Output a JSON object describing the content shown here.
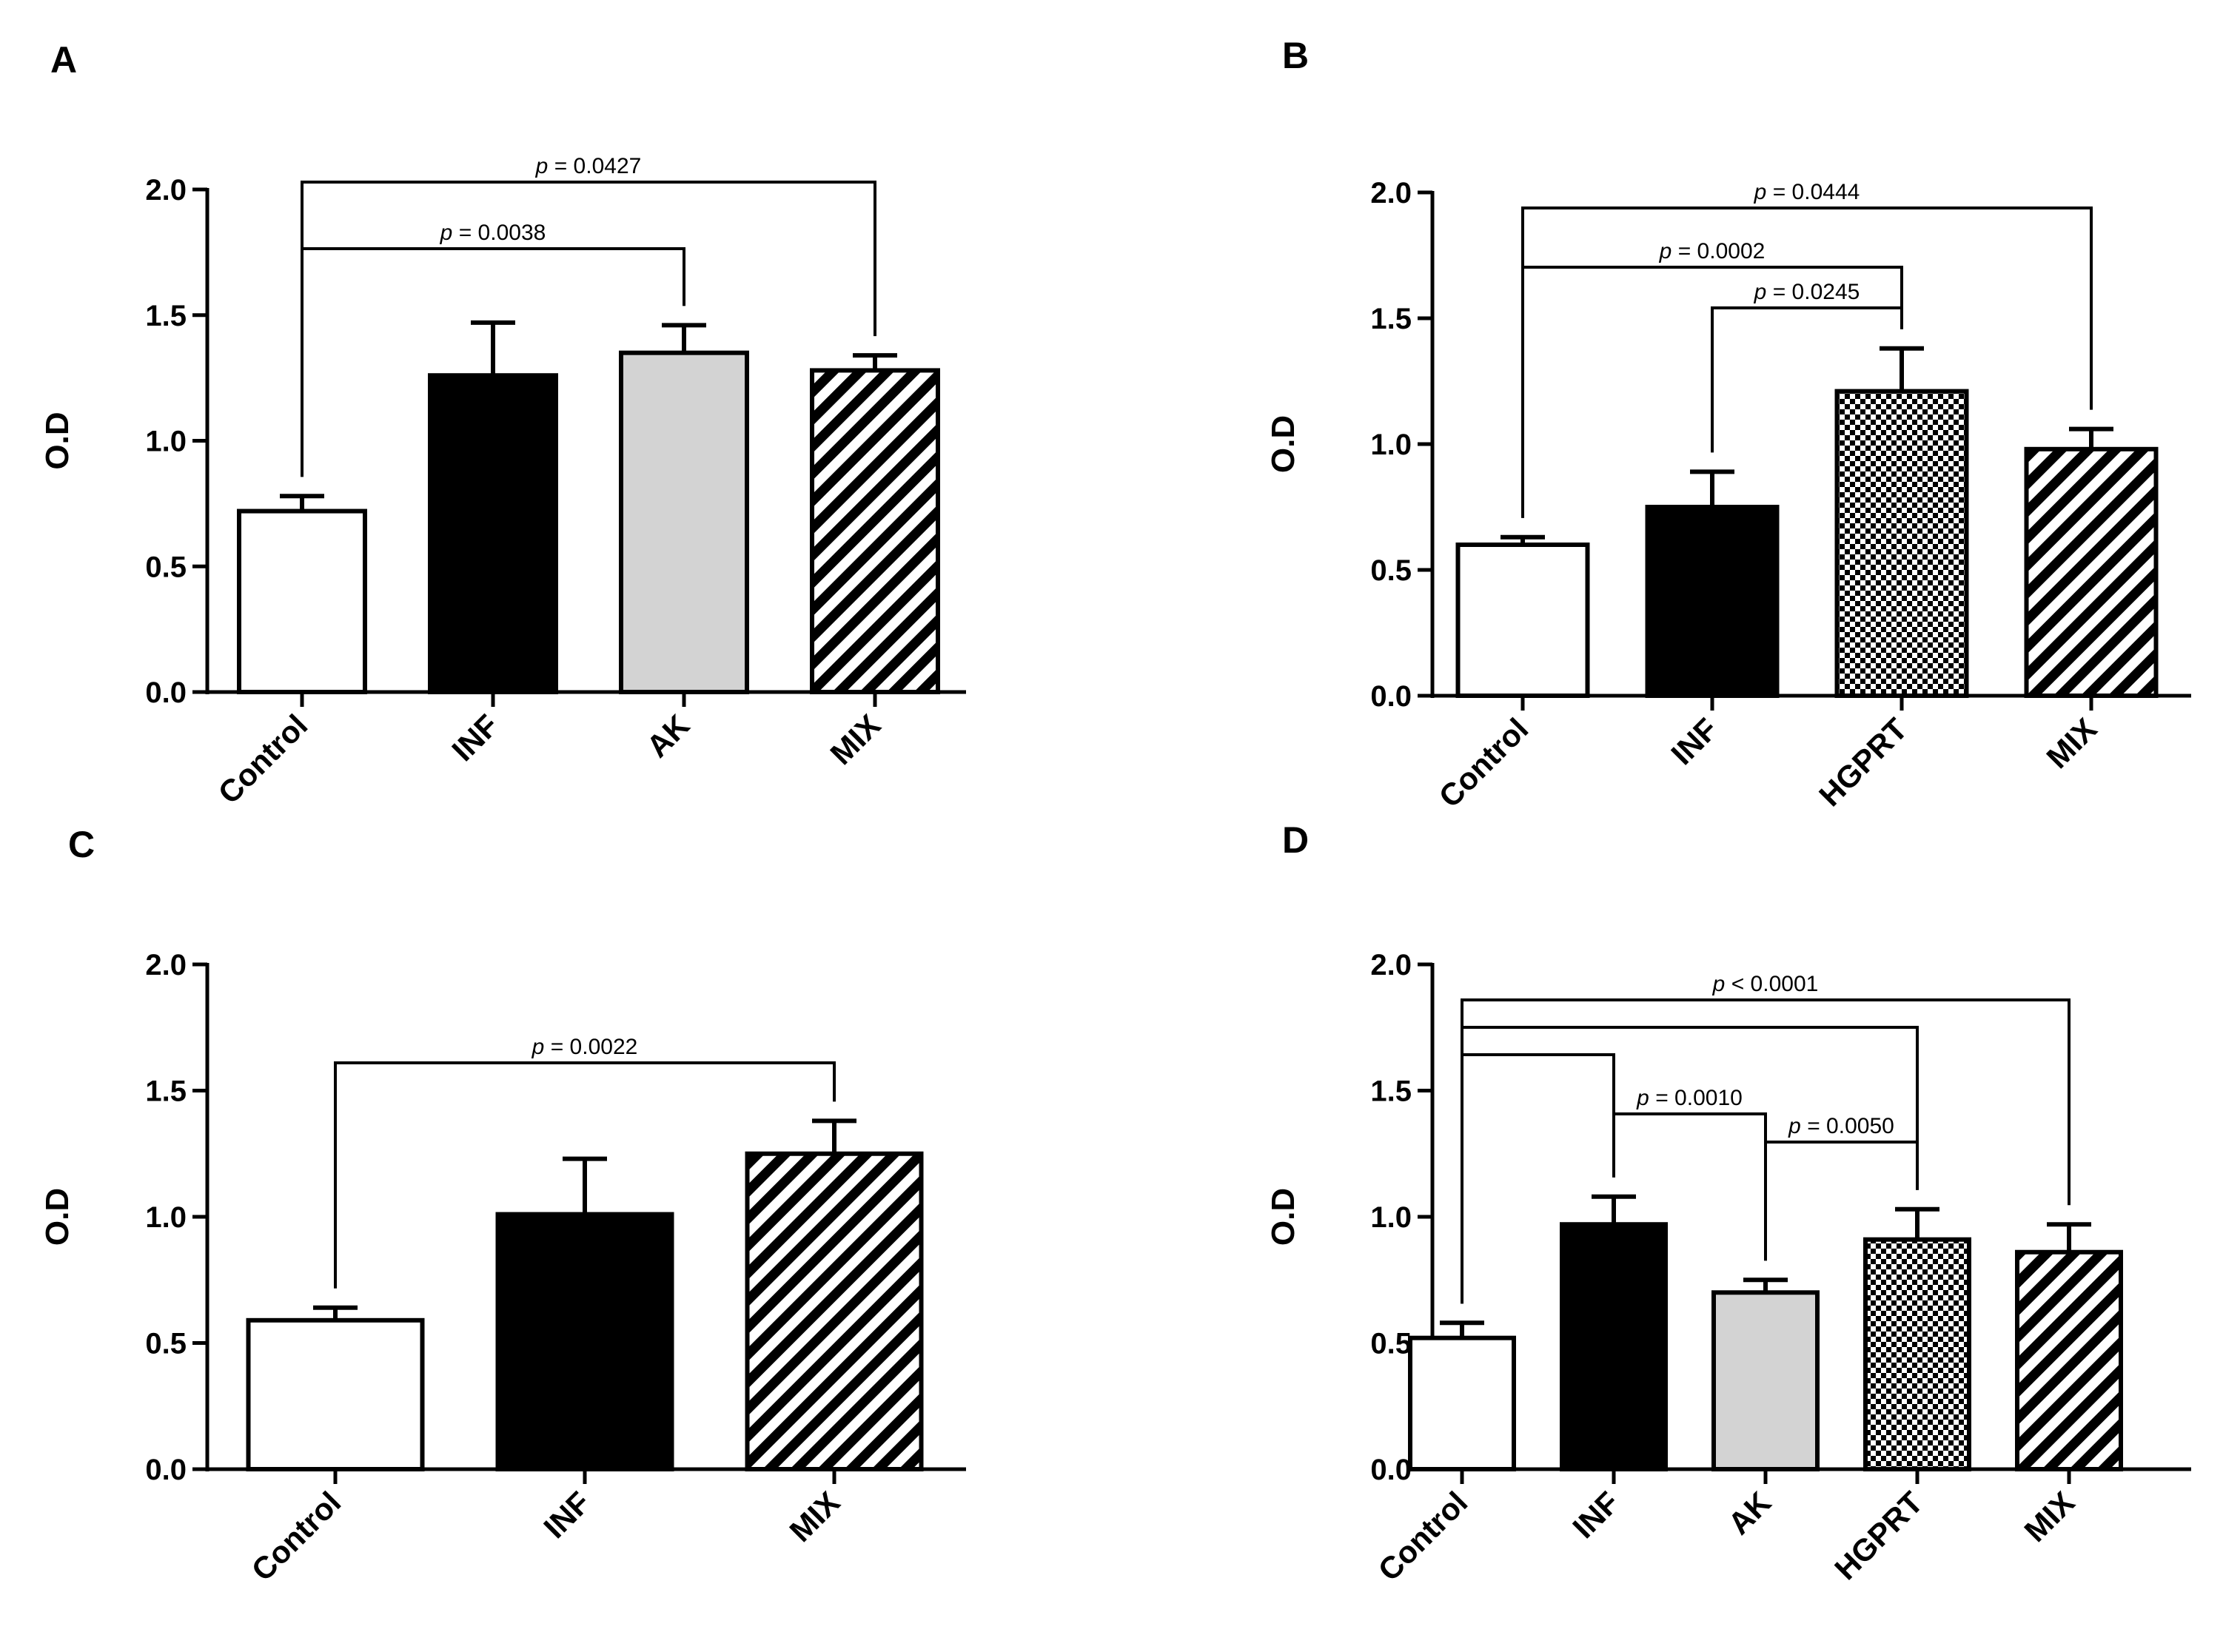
{
  "chart_data": [
    {
      "panel": "A",
      "type": "bar",
      "ylabel": "O.D",
      "ylim": [
        0,
        2.0
      ],
      "yticks": [
        "0.0",
        "0.5",
        "1.0",
        "1.5",
        "2.0"
      ],
      "categories": [
        "Control",
        "INF",
        "AK",
        "MIX"
      ],
      "values": [
        0.72,
        1.26,
        1.35,
        1.28
      ],
      "errors": [
        0.06,
        0.21,
        0.11,
        0.06
      ],
      "fills": [
        "white",
        "black",
        "gray",
        "stripes"
      ],
      "comparisons": [
        {
          "from": 0,
          "to": 3,
          "p_symbol": "p",
          "p_text": " = 0.0427"
        },
        {
          "from": 0,
          "to": 2,
          "p_symbol": "p",
          "p_text": " = 0.0038"
        }
      ]
    },
    {
      "panel": "B",
      "type": "bar",
      "ylabel": "O.D",
      "ylim": [
        0,
        2.0
      ],
      "yticks": [
        "0.0",
        "0.5",
        "1.0",
        "1.5",
        "2.0"
      ],
      "categories": [
        "Control",
        "INF",
        "HGPRT",
        "MIX"
      ],
      "values": [
        0.6,
        0.75,
        1.21,
        0.98
      ],
      "errors": [
        0.03,
        0.14,
        0.17,
        0.08
      ],
      "fills": [
        "white",
        "black",
        "checker",
        "stripes"
      ],
      "comparisons": [
        {
          "from": 0,
          "to": 3,
          "p_symbol": "p",
          "p_text": " = 0.0444"
        },
        {
          "from": 0,
          "to": 2,
          "p_symbol": "p",
          "p_text": " = 0.0002"
        },
        {
          "from": 1,
          "to": 2,
          "p_symbol": "p",
          "p_text": " = 0.0245"
        }
      ]
    },
    {
      "panel": "C",
      "type": "bar",
      "ylabel": "O.D",
      "ylim": [
        0,
        2.0
      ],
      "yticks": [
        "0.0",
        "0.5",
        "1.0",
        "1.5",
        "2.0"
      ],
      "categories": [
        "Control",
        "INF",
        "MIX"
      ],
      "values": [
        0.59,
        1.01,
        1.25
      ],
      "errors": [
        0.05,
        0.22,
        0.13
      ],
      "fills": [
        "white",
        "black",
        "stripes"
      ],
      "comparisons": [
        {
          "from": 0,
          "to": 2,
          "p_symbol": "p",
          "p_text": " = 0.0022"
        }
      ]
    },
    {
      "panel": "D",
      "type": "bar",
      "ylabel": "O.D",
      "ylim": [
        0,
        2.0
      ],
      "yticks": [
        "0.0",
        "0.5",
        "1.0",
        "1.5",
        "2.0"
      ],
      "categories": [
        "Control",
        "INF",
        "AK",
        "HGPRT",
        "MIX"
      ],
      "values": [
        0.52,
        0.97,
        0.7,
        0.91,
        0.86
      ],
      "errors": [
        0.06,
        0.11,
        0.05,
        0.12,
        0.11
      ],
      "fills": [
        "white",
        "black",
        "gray",
        "checker",
        "stripes"
      ],
      "comparisons": [
        {
          "from": 0,
          "to": 4,
          "p_symbol": "p",
          "p_text": " < 0.0001"
        },
        {
          "from": 0,
          "to": 3
        },
        {
          "from": 0,
          "to": 1
        },
        {
          "from": 1,
          "to": 2,
          "p_symbol": "p",
          "p_text": " = 0.0010"
        },
        {
          "from": 2,
          "to": 3,
          "p_symbol": "p",
          "p_text": " = 0.0050"
        }
      ]
    }
  ]
}
